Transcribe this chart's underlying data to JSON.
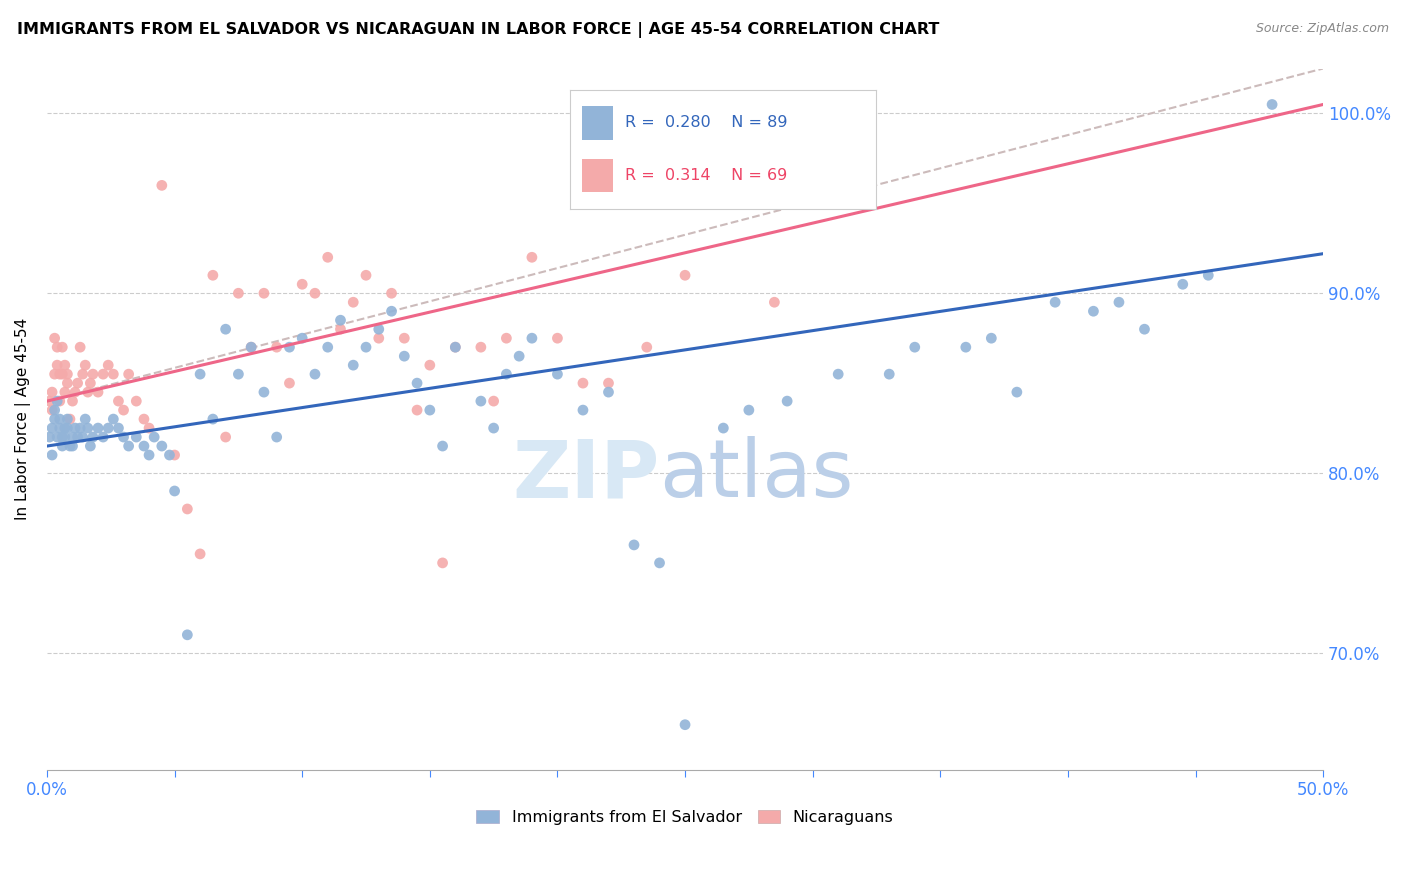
{
  "title": "IMMIGRANTS FROM EL SALVADOR VS NICARAGUAN IN LABOR FORCE | AGE 45-54 CORRELATION CHART",
  "source": "Source: ZipAtlas.com",
  "ylabel": "In Labor Force | Age 45-54",
  "xlim": [
    0.0,
    0.5
  ],
  "ylim": [
    0.635,
    1.025
  ],
  "yticks": [
    0.7,
    0.8,
    0.9,
    1.0
  ],
  "ytick_labels": [
    "70.0%",
    "80.0%",
    "90.0%",
    "100.0%"
  ],
  "xticks": [
    0.0,
    0.05,
    0.1,
    0.15,
    0.2,
    0.25,
    0.3,
    0.35,
    0.4,
    0.45,
    0.5
  ],
  "xtick_labels": [
    "0.0%",
    "",
    "",
    "",
    "",
    "",
    "",
    "",
    "",
    "",
    "50.0%"
  ],
  "blue_R": 0.28,
  "blue_N": 89,
  "pink_R": 0.314,
  "pink_N": 69,
  "blue_color": "#92B4D8",
  "pink_color": "#F4AAAA",
  "line_blue": "#3366BB",
  "line_pink": "#EE6688",
  "line_dashed_color": "#CCBBBB",
  "legend_label_blue": "Immigrants from El Salvador",
  "legend_label_pink": "Nicaraguans",
  "blue_scatter_x": [
    0.001,
    0.002,
    0.002,
    0.003,
    0.003,
    0.004,
    0.004,
    0.005,
    0.005,
    0.006,
    0.006,
    0.007,
    0.007,
    0.008,
    0.008,
    0.009,
    0.01,
    0.01,
    0.011,
    0.012,
    0.013,
    0.014,
    0.015,
    0.016,
    0.017,
    0.018,
    0.02,
    0.022,
    0.024,
    0.026,
    0.028,
    0.03,
    0.032,
    0.035,
    0.038,
    0.04,
    0.042,
    0.045,
    0.048,
    0.05,
    0.055,
    0.06,
    0.065,
    0.07,
    0.075,
    0.08,
    0.085,
    0.09,
    0.095,
    0.1,
    0.105,
    0.11,
    0.115,
    0.12,
    0.125,
    0.13,
    0.135,
    0.14,
    0.145,
    0.15,
    0.155,
    0.16,
    0.17,
    0.175,
    0.18,
    0.185,
    0.19,
    0.2,
    0.21,
    0.22,
    0.23,
    0.24,
    0.25,
    0.265,
    0.275,
    0.29,
    0.31,
    0.33,
    0.34,
    0.36,
    0.37,
    0.38,
    0.395,
    0.41,
    0.42,
    0.43,
    0.445,
    0.455,
    0.48
  ],
  "blue_scatter_y": [
    0.82,
    0.81,
    0.825,
    0.83,
    0.835,
    0.84,
    0.82,
    0.83,
    0.825,
    0.815,
    0.82,
    0.825,
    0.82,
    0.83,
    0.825,
    0.815,
    0.82,
    0.815,
    0.825,
    0.82,
    0.825,
    0.82,
    0.83,
    0.825,
    0.815,
    0.82,
    0.825,
    0.82,
    0.825,
    0.83,
    0.825,
    0.82,
    0.815,
    0.82,
    0.815,
    0.81,
    0.82,
    0.815,
    0.81,
    0.79,
    0.71,
    0.855,
    0.83,
    0.88,
    0.855,
    0.87,
    0.845,
    0.82,
    0.87,
    0.875,
    0.855,
    0.87,
    0.885,
    0.86,
    0.87,
    0.88,
    0.89,
    0.865,
    0.85,
    0.835,
    0.815,
    0.87,
    0.84,
    0.825,
    0.855,
    0.865,
    0.875,
    0.855,
    0.835,
    0.845,
    0.76,
    0.75,
    0.66,
    0.825,
    0.835,
    0.84,
    0.855,
    0.855,
    0.87,
    0.87,
    0.875,
    0.845,
    0.895,
    0.89,
    0.895,
    0.88,
    0.905,
    0.91,
    1.005
  ],
  "pink_scatter_x": [
    0.001,
    0.002,
    0.002,
    0.003,
    0.003,
    0.004,
    0.004,
    0.005,
    0.005,
    0.006,
    0.006,
    0.007,
    0.007,
    0.008,
    0.008,
    0.009,
    0.01,
    0.011,
    0.012,
    0.013,
    0.014,
    0.015,
    0.016,
    0.017,
    0.018,
    0.02,
    0.022,
    0.024,
    0.026,
    0.028,
    0.03,
    0.032,
    0.035,
    0.038,
    0.04,
    0.045,
    0.05,
    0.055,
    0.06,
    0.065,
    0.07,
    0.075,
    0.08,
    0.085,
    0.09,
    0.095,
    0.1,
    0.105,
    0.11,
    0.115,
    0.12,
    0.125,
    0.13,
    0.135,
    0.14,
    0.145,
    0.15,
    0.155,
    0.16,
    0.17,
    0.175,
    0.18,
    0.19,
    0.2,
    0.21,
    0.22,
    0.235,
    0.25,
    0.285
  ],
  "pink_scatter_y": [
    0.84,
    0.835,
    0.845,
    0.855,
    0.875,
    0.87,
    0.86,
    0.84,
    0.855,
    0.87,
    0.855,
    0.845,
    0.86,
    0.855,
    0.85,
    0.83,
    0.84,
    0.845,
    0.85,
    0.87,
    0.855,
    0.86,
    0.845,
    0.85,
    0.855,
    0.845,
    0.855,
    0.86,
    0.855,
    0.84,
    0.835,
    0.855,
    0.84,
    0.83,
    0.825,
    0.96,
    0.81,
    0.78,
    0.755,
    0.91,
    0.82,
    0.9,
    0.87,
    0.9,
    0.87,
    0.85,
    0.905,
    0.9,
    0.92,
    0.88,
    0.895,
    0.91,
    0.875,
    0.9,
    0.875,
    0.835,
    0.86,
    0.75,
    0.87,
    0.87,
    0.84,
    0.875,
    0.92,
    0.875,
    0.85,
    0.85,
    0.87,
    0.91,
    0.895
  ],
  "blue_line_x0": 0.0,
  "blue_line_x1": 0.5,
  "blue_line_y0": 0.815,
  "blue_line_y1": 0.922,
  "pink_line_x0": 0.0,
  "pink_line_x1": 0.5,
  "pink_line_y0": 0.84,
  "pink_line_y1": 1.005,
  "dash_line_x0": 0.0,
  "dash_line_x1": 0.5,
  "dash_line_y0": 0.84,
  "dash_line_y1": 1.025
}
